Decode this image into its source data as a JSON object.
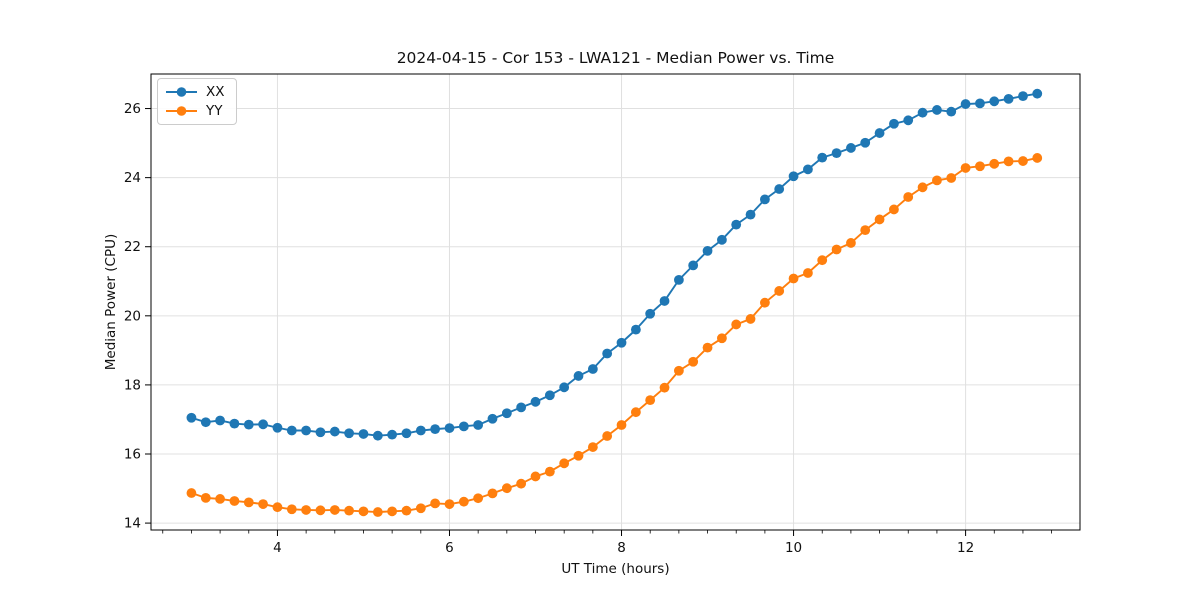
{
  "figure": {
    "background": "#ffffff",
    "text_color": "#111111",
    "spine_color": "#000000"
  },
  "chart_data": {
    "type": "line",
    "title": "2024-04-15 - Cor 153 - LWA121 - Median Power vs. Time",
    "xlabel": "UT Time (hours)",
    "ylabel": "Median Power (CPU)",
    "xlim": [
      2.53,
      13.33
    ],
    "ylim": [
      13.8,
      27.0
    ],
    "xticks": [
      4,
      6,
      8,
      10,
      12
    ],
    "yticks": [
      14,
      16,
      18,
      20,
      22,
      24,
      26
    ],
    "minor_xtick_step": 0.3333333,
    "grid": true,
    "grid_color": "#e0e0e0",
    "legend_position": "upper-left",
    "x": [
      3.0,
      3.167,
      3.333,
      3.5,
      3.667,
      3.833,
      4.0,
      4.167,
      4.333,
      4.5,
      4.667,
      4.833,
      5.0,
      5.167,
      5.333,
      5.5,
      5.667,
      5.833,
      6.0,
      6.167,
      6.333,
      6.5,
      6.667,
      6.833,
      7.0,
      7.167,
      7.333,
      7.5,
      7.667,
      7.833,
      8.0,
      8.167,
      8.333,
      8.5,
      8.667,
      8.833,
      9.0,
      9.167,
      9.333,
      9.5,
      9.667,
      9.833,
      10.0,
      10.167,
      10.333,
      10.5,
      10.667,
      10.833,
      11.0,
      11.167,
      11.333,
      11.5,
      11.667,
      11.833,
      12.0,
      12.167,
      12.333,
      12.5,
      12.667,
      12.833
    ],
    "series": [
      {
        "name": "XX",
        "color": "#1f77b4",
        "marker": "circle",
        "values": [
          17.05,
          16.92,
          16.97,
          16.88,
          16.85,
          16.86,
          16.76,
          16.68,
          16.68,
          16.63,
          16.65,
          16.6,
          16.58,
          16.53,
          16.56,
          16.6,
          16.68,
          16.72,
          16.75,
          16.8,
          16.84,
          17.02,
          17.18,
          17.35,
          17.51,
          17.7,
          17.93,
          18.26,
          18.46,
          18.91,
          19.22,
          19.6,
          20.06,
          20.43,
          21.04,
          21.46,
          21.88,
          22.2,
          22.64,
          22.93,
          23.37,
          23.67,
          24.04,
          24.24,
          24.58,
          24.71,
          24.86,
          25.01,
          25.29,
          25.56,
          25.66,
          25.88,
          25.96,
          25.91,
          26.13,
          26.15,
          26.21,
          26.28,
          26.36,
          26.43
        ]
      },
      {
        "name": "YY",
        "color": "#ff7f0e",
        "marker": "circle",
        "values": [
          14.87,
          14.73,
          14.7,
          14.64,
          14.6,
          14.55,
          14.46,
          14.4,
          14.38,
          14.37,
          14.38,
          14.36,
          14.34,
          14.32,
          14.34,
          14.36,
          14.43,
          14.57,
          14.55,
          14.62,
          14.72,
          14.86,
          15.01,
          15.14,
          15.35,
          15.49,
          15.73,
          15.95,
          16.2,
          16.52,
          16.84,
          17.21,
          17.56,
          17.92,
          18.41,
          18.67,
          19.08,
          19.35,
          19.75,
          19.91,
          20.38,
          20.72,
          21.08,
          21.24,
          21.61,
          21.92,
          22.11,
          22.48,
          22.79,
          23.08,
          23.44,
          23.72,
          23.92,
          23.99,
          24.28,
          24.33,
          24.4,
          24.47,
          24.48,
          24.57
        ]
      }
    ]
  }
}
